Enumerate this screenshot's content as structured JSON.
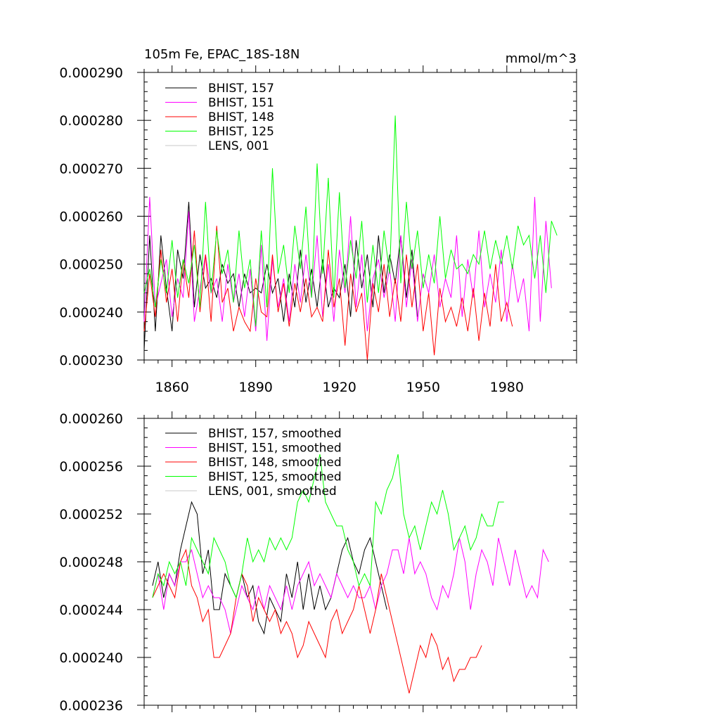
{
  "chart_data": [
    {
      "type": "line",
      "title": "105m Fe, EPAC_18S-18N",
      "units_label": "mmol/m^3",
      "xlabel": "",
      "ylabel": "",
      "xlim": [
        1850,
        2005
      ],
      "ylim": [
        0.00023,
        0.00029
      ],
      "x_ticks": [
        1860,
        1890,
        1920,
        1950,
        1980
      ],
      "x_tick_labels": [
        "1860",
        "1890",
        "1920",
        "1950",
        "1980"
      ],
      "y_ticks": [
        0.00023,
        0.00024,
        0.00025,
        0.00026,
        0.00027,
        0.00028,
        0.00029
      ],
      "y_tick_labels": [
        "0.000230",
        "0.000240",
        "0.000250",
        "0.000260",
        "0.000270",
        "0.000280",
        "0.000290"
      ],
      "legend_position": "top-left",
      "series": [
        {
          "name": "BHIST, 157",
          "color": "#000000",
          "x_start": 1850,
          "x_step": 2,
          "values": [
            0.000232,
            0.000256,
            0.000236,
            0.000256,
            0.000245,
            0.000236,
            0.000253,
            0.000247,
            0.000263,
            0.000241,
            0.000252,
            0.000245,
            0.000247,
            0.000243,
            0.00025,
            0.000246,
            0.000248,
            0.000241,
            0.000248,
            0.000244,
            0.000245,
            0.000244,
            0.00025,
            0.000244,
            0.000247,
            0.000238,
            0.000248,
            0.000241,
            0.000253,
            0.000242,
            0.000249,
            0.000241,
            0.000251,
            0.000241,
            0.000245,
            0.000243,
            0.00025,
            0.000239,
            0.000255,
            0.000245,
            0.000252,
            0.000241,
            0.000256,
            0.000244,
            0.000252,
            0.000246,
            0.000256,
            0.000243,
            0.000253,
            0.000239
          ]
        },
        {
          "name": "BHIST, 151",
          "color": "#ff00ff",
          "x_start": 1850,
          "x_step": 2,
          "values": [
            0.000238,
            0.000264,
            0.000241,
            0.000246,
            0.000251,
            0.000239,
            0.000247,
            0.000243,
            0.000261,
            0.000238,
            0.000245,
            0.000252,
            0.000244,
            0.000247,
            0.000238,
            0.00025,
            0.000242,
            0.000248,
            0.000239,
            0.000249,
            0.000236,
            0.000254,
            0.000234,
            0.000251,
            0.000241,
            0.000247,
            0.000238,
            0.00025,
            0.000242,
            0.000252,
            0.000243,
            0.000256,
            0.000239,
            0.00025,
            0.000238,
            0.000253,
            0.000244,
            0.00026,
            0.000241,
            0.000252,
            0.000236,
            0.000247,
            0.000251,
            0.000243,
            0.000249,
            0.000238,
            0.000256,
            0.000241,
            0.000251,
            0.000238,
            0.000248,
            0.000244,
            0.000252,
            0.000241,
            0.000247,
            0.000243,
            0.000256,
            0.000239,
            0.000251,
            0.000243,
            0.000257,
            0.000241,
            0.000248,
            0.000242,
            0.000253,
            0.000238,
            0.00025,
            0.000242,
            0.000247,
            0.000236,
            0.000264,
            0.000238,
            0.000259,
            0.000245
          ]
        },
        {
          "name": "BHIST, 148",
          "color": "#ff0000",
          "x_start": 1850,
          "x_step": 2,
          "values": [
            0.000236,
            0.000248,
            0.000239,
            0.000253,
            0.000242,
            0.000249,
            0.000238,
            0.000251,
            0.000243,
            0.000257,
            0.00024,
            0.000252,
            0.000238,
            0.000258,
            0.000242,
            0.000245,
            0.000236,
            0.000241,
            0.000238,
            0.000236,
            0.000247,
            0.00024,
            0.000239,
            0.000252,
            0.00024,
            0.000246,
            0.000237,
            0.000246,
            0.00024,
            0.000247,
            0.000239,
            0.000241,
            0.000238,
            0.000253,
            0.000241,
            0.000247,
            0.000233,
            0.000248,
            0.00024,
            0.000244,
            0.00023,
            0.000246,
            0.00024,
            0.00025,
            0.000239,
            0.000247,
            0.000238,
            0.000252,
            0.000241,
            0.00025,
            0.000236,
            0.000244,
            0.000231,
            0.000245,
            0.000238,
            0.000241,
            0.000237,
            0.000243,
            0.000236,
            0.000245,
            0.000234,
            0.000244,
            0.000237,
            0.00025,
            0.000238,
            0.000242,
            0.000237
          ]
        },
        {
          "name": "BHIST, 125",
          "color": "#00ff00",
          "x_start": 1850,
          "x_step": 2,
          "values": [
            0.000244,
            0.000249,
            0.000241,
            0.000251,
            0.000244,
            0.000255,
            0.000243,
            0.000251,
            0.000246,
            0.000254,
            0.000241,
            0.000263,
            0.000244,
            0.000257,
            0.000248,
            0.000253,
            0.000242,
            0.000257,
            0.000245,
            0.000251,
            0.000237,
            0.000257,
            0.000241,
            0.00027,
            0.000248,
            0.000254,
            0.000244,
            0.000258,
            0.000249,
            0.000262,
            0.000243,
            0.000271,
            0.000248,
            0.000268,
            0.000243,
            0.000265,
            0.000245,
            0.000255,
            0.000247,
            0.000259,
            0.000242,
            0.000254,
            0.000244,
            0.000257,
            0.000248,
            0.000281,
            0.000246,
            0.000263,
            0.000249,
            0.000257,
            0.000245,
            0.000252,
            0.000246,
            0.00026,
            0.000247,
            0.000253,
            0.000249,
            0.00025,
            0.000248,
            0.000252,
            0.00025,
            0.000257,
            0.000249,
            0.000255,
            0.00025,
            0.000256,
            0.000249,
            0.000258,
            0.000254,
            0.000256,
            0.000247,
            0.000256,
            0.000244,
            0.000259,
            0.000256
          ]
        },
        {
          "name": "LENS, 001",
          "color": "#c8c8c8",
          "x_start": 1850,
          "x_step": 2,
          "values": []
        }
      ]
    },
    {
      "type": "line",
      "title": "",
      "xlabel": "",
      "ylabel": "",
      "xlim": [
        1850,
        2005
      ],
      "ylim": [
        0.000236,
        0.00026
      ],
      "x_ticks": [
        1860,
        1890,
        1920,
        1950,
        1980
      ],
      "x_tick_labels": [],
      "y_ticks": [
        0.000236,
        0.00024,
        0.000244,
        0.000248,
        0.000252,
        0.000256,
        0.00026
      ],
      "y_tick_labels": [
        "0.000236",
        "0.000240",
        "0.000244",
        "0.000248",
        "0.000252",
        "0.000256",
        "0.000260"
      ],
      "legend_position": "top-left",
      "series": [
        {
          "name": "BHIST, 157, smoothed",
          "color": "#000000",
          "x_start": 1853,
          "x_step": 2,
          "values": [
            0.000246,
            0.000248,
            0.000245,
            0.000247,
            0.000246,
            0.000249,
            0.000251,
            0.000253,
            0.000252,
            0.000247,
            0.000249,
            0.000244,
            0.000244,
            0.000247,
            0.000246,
            0.000245,
            0.000247,
            0.000245,
            0.000246,
            0.000243,
            0.000242,
            0.000245,
            0.000244,
            0.000243,
            0.000247,
            0.000245,
            0.000248,
            0.000244,
            0.000247,
            0.000244,
            0.000246,
            0.000244,
            0.000245,
            0.000247,
            0.000249,
            0.00025,
            0.000248,
            0.000247,
            0.000249,
            0.00025,
            0.000248,
            0.000246,
            0.000244
          ]
        },
        {
          "name": "BHIST, 151, smoothed",
          "color": "#ff00ff",
          "x_start": 1853,
          "x_step": 2,
          "values": [
            0.000245,
            0.000247,
            0.000244,
            0.000247,
            0.000246,
            0.000248,
            0.000248,
            0.000249,
            0.000247,
            0.000245,
            0.000246,
            0.000245,
            0.000245,
            0.000244,
            0.000242,
            0.000244,
            0.000246,
            0.000245,
            0.000244,
            0.000246,
            0.000244,
            0.000246,
            0.000245,
            0.000244,
            0.000246,
            0.000244,
            0.000246,
            0.000247,
            0.000248,
            0.000246,
            0.000247,
            0.000246,
            0.000245,
            0.000247,
            0.000246,
            0.000245,
            0.000246,
            0.000245,
            0.000245,
            0.000246,
            0.000244,
            0.000246,
            0.000247,
            0.000249,
            0.000249,
            0.000247,
            0.00025,
            0.000247,
            0.000248,
            0.000247,
            0.000245,
            0.000244,
            0.000246,
            0.000245,
            0.000247,
            0.00025,
            0.000248,
            0.000244,
            0.000247,
            0.000249,
            0.000248,
            0.000246,
            0.00025,
            0.000248,
            0.000246,
            0.000249,
            0.000247,
            0.000245,
            0.000246,
            0.000245,
            0.000249,
            0.000248
          ]
        },
        {
          "name": "BHIST, 148, smoothed",
          "color": "#ff0000",
          "x_start": 1853,
          "x_step": 2,
          "values": [
            0.000245,
            0.000246,
            0.000247,
            0.000246,
            0.000245,
            0.000248,
            0.000249,
            0.000246,
            0.000245,
            0.000243,
            0.000244,
            0.00024,
            0.00024,
            0.000241,
            0.000242,
            0.000245,
            0.000247,
            0.000246,
            0.000243,
            0.000245,
            0.000244,
            0.000243,
            0.000244,
            0.000242,
            0.000243,
            0.000242,
            0.00024,
            0.000241,
            0.000243,
            0.000242,
            0.000241,
            0.00024,
            0.000243,
            0.000244,
            0.000242,
            0.000243,
            0.000244,
            0.000246,
            0.000244,
            0.000242,
            0.000244,
            0.000247,
            0.000245,
            0.000243,
            0.000241,
            0.000239,
            0.000237,
            0.000239,
            0.000241,
            0.00024,
            0.000242,
            0.000241,
            0.000239,
            0.00024,
            0.000238,
            0.000239,
            0.000239,
            0.00024,
            0.00024,
            0.000241
          ]
        },
        {
          "name": "BHIST, 125, smoothed",
          "color": "#00ff00",
          "x_start": 1853,
          "x_step": 2,
          "values": [
            0.000245,
            0.000247,
            0.000246,
            0.000248,
            0.000247,
            0.000248,
            0.000246,
            0.00025,
            0.000249,
            0.000248,
            0.000247,
            0.00025,
            0.000249,
            0.000248,
            0.000246,
            0.000245,
            0.000247,
            0.00025,
            0.000248,
            0.000249,
            0.000248,
            0.00025,
            0.000249,
            0.00025,
            0.000249,
            0.00025,
            0.000253,
            0.000254,
            0.000253,
            0.000255,
            0.000257,
            0.000253,
            0.000252,
            0.000251,
            0.000251,
            0.000249,
            0.000248,
            0.000246,
            0.000247,
            0.000246,
            0.000253,
            0.000252,
            0.000254,
            0.000255,
            0.000257,
            0.000252,
            0.00025,
            0.000251,
            0.000249,
            0.000251,
            0.000253,
            0.000252,
            0.000254,
            0.000252,
            0.000249,
            0.00025,
            0.000251,
            0.000249,
            0.00025,
            0.000252,
            0.000251,
            0.000251,
            0.000253,
            0.000253
          ]
        },
        {
          "name": "LENS, 001, smoothed",
          "color": "#c8c8c8",
          "x_start": 1853,
          "x_step": 2,
          "values": []
        }
      ]
    }
  ]
}
